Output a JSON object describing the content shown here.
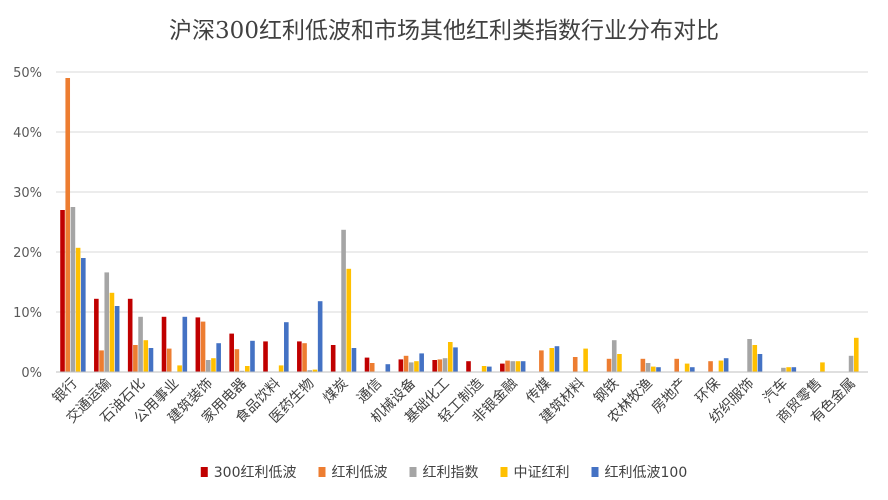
{
  "chart_data": {
    "type": "bar",
    "title": "沪深300红利低波和市场其他红利类指数行业分布对比",
    "xlabel": "",
    "ylabel": "",
    "ylim": [
      0,
      50
    ],
    "y_ticks": [
      "0%",
      "10%",
      "20%",
      "30%",
      "40%",
      "50%"
    ],
    "y_tick_values": [
      0,
      10,
      20,
      30,
      40,
      50
    ],
    "grid": true,
    "legend_position": "bottom",
    "categories": [
      "银行",
      "交通运输",
      "石油石化",
      "公用事业",
      "建筑装饰",
      "家用电器",
      "食品饮料",
      "医药生物",
      "煤炭",
      "通信",
      "机械设备",
      "基础化工",
      "轻工制造",
      "非银金融",
      "传媒",
      "建筑材料",
      "钢铁",
      "农林牧渔",
      "房地产",
      "环保",
      "纺织服饰",
      "汽车",
      "商贸零售",
      "有色金属"
    ],
    "series": [
      {
        "name": "300红利低波",
        "color": "#C00000",
        "values": [
          27,
          12.2,
          12.2,
          9.2,
          9.1,
          6.4,
          5.1,
          5.1,
          4.5,
          2.4,
          2.1,
          2.0,
          1.8,
          1.4,
          0,
          0,
          0,
          0,
          0,
          0,
          0,
          0,
          0,
          0
        ]
      },
      {
        "name": "红利低波",
        "color": "#ED7D31",
        "values": [
          49,
          3.6,
          4.5,
          3.9,
          8.4,
          3.8,
          0,
          4.8,
          0,
          1.5,
          2.7,
          2.1,
          0,
          1.9,
          3.6,
          2.5,
          2.2,
          2.2,
          2.2,
          1.8,
          0,
          0,
          0,
          0
        ]
      },
      {
        "name": "红利指数",
        "color": "#A5A5A5",
        "values": [
          27.5,
          16.6,
          9.2,
          0,
          2.0,
          0.2,
          0,
          0.3,
          23.7,
          0,
          1.6,
          2.3,
          0,
          1.8,
          0,
          0,
          5.3,
          1.5,
          0,
          0,
          5.5,
          0.7,
          0,
          2.7
        ]
      },
      {
        "name": "中证红利",
        "color": "#FFC000",
        "values": [
          20.7,
          13.2,
          5.3,
          1.1,
          2.3,
          1.0,
          1.1,
          0.4,
          17.2,
          0,
          1.8,
          5.0,
          1.0,
          1.8,
          4.0,
          3.9,
          3.0,
          0.9,
          1.4,
          1.9,
          4.5,
          0.8,
          1.6,
          5.7
        ]
      },
      {
        "name": "红利低波100",
        "color": "#4472C4",
        "values": [
          19,
          11.0,
          4.0,
          9.2,
          4.8,
          5.2,
          8.3,
          11.8,
          4.0,
          1.3,
          3.1,
          4.1,
          0.9,
          1.8,
          4.3,
          0,
          0,
          0.8,
          0.8,
          2.3,
          3.0,
          0.8,
          0,
          0
        ]
      }
    ]
  }
}
